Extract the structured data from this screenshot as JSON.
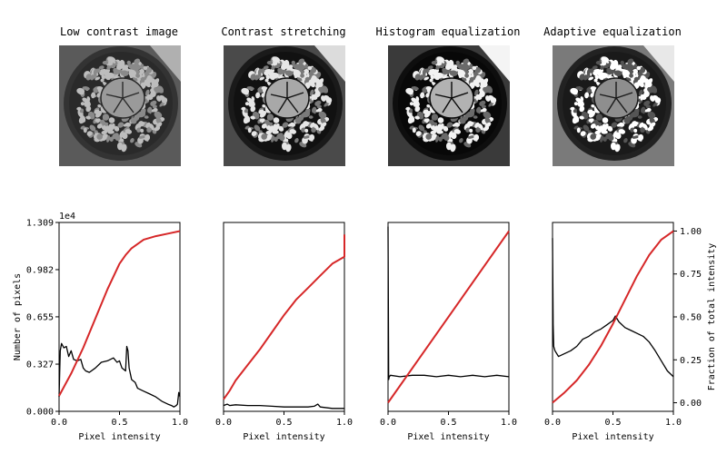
{
  "panels": [
    {
      "title": "Low contrast image",
      "image": {
        "style": "low"
      }
    },
    {
      "title": "Contrast stretching",
      "image": {
        "style": "stretch"
      }
    },
    {
      "title": "Histogram equalization",
      "image": {
        "style": "equal"
      }
    },
    {
      "title": "Adaptive equalization",
      "image": {
        "style": "adaptive"
      }
    }
  ],
  "chart_data": [
    {
      "type": "line",
      "title": "",
      "xlabel": "Pixel intensity",
      "ylabel": "Number of pixels",
      "xlim": [
        0,
        1
      ],
      "ylim": [
        0,
        1.309
      ],
      "y_multiplier": "1e4",
      "xticks": [
        0.0,
        0.5,
        1.0
      ],
      "xtick_labels": [
        "0.0",
        "0.5",
        "1.0"
      ],
      "yticks": [
        0,
        0.327,
        0.655,
        0.982,
        1.309
      ],
      "ytick_labels": [
        "0.000",
        "0.327",
        "0.655",
        "0.982",
        "1.309"
      ],
      "grid": false,
      "series": [
        {
          "role": "histogram",
          "color": "#000000",
          "x": [
            0.0,
            0.01,
            0.02,
            0.04,
            0.06,
            0.08,
            0.1,
            0.12,
            0.15,
            0.18,
            0.2,
            0.22,
            0.25,
            0.3,
            0.35,
            0.4,
            0.45,
            0.48,
            0.5,
            0.52,
            0.55,
            0.56,
            0.57,
            0.58,
            0.6,
            0.63,
            0.65,
            0.7,
            0.75,
            0.8,
            0.85,
            0.9,
            0.93,
            0.95,
            0.97,
            0.98,
            0.99,
            1.0
          ],
          "values": [
            0.1,
            0.42,
            0.47,
            0.44,
            0.45,
            0.38,
            0.42,
            0.36,
            0.35,
            0.36,
            0.3,
            0.28,
            0.27,
            0.3,
            0.34,
            0.35,
            0.37,
            0.34,
            0.35,
            0.3,
            0.28,
            0.45,
            0.42,
            0.3,
            0.22,
            0.2,
            0.16,
            0.14,
            0.12,
            0.1,
            0.07,
            0.05,
            0.04,
            0.03,
            0.04,
            0.05,
            0.13,
            0.1
          ]
        },
        {
          "role": "cdf",
          "color": "#d62728",
          "x": [
            0.0,
            0.1,
            0.2,
            0.3,
            0.4,
            0.5,
            0.55,
            0.6,
            0.7,
            0.8,
            0.9,
            1.0
          ],
          "values": [
            0.04,
            0.17,
            0.32,
            0.49,
            0.66,
            0.81,
            0.86,
            0.9,
            0.95,
            0.97,
            0.985,
            1.0
          ]
        }
      ]
    },
    {
      "type": "line",
      "title": "",
      "xlabel": "Pixel intensity",
      "xlim": [
        0,
        1
      ],
      "xticks": [
        0.0,
        0.5,
        1.0
      ],
      "xtick_labels": [
        "0.0",
        "0.5",
        "1.0"
      ],
      "grid": false,
      "series": [
        {
          "role": "histogram",
          "color": "#000000",
          "x": [
            0.0,
            0.03,
            0.05,
            0.1,
            0.2,
            0.3,
            0.4,
            0.5,
            0.6,
            0.7,
            0.75,
            0.78,
            0.8,
            0.9,
            0.95,
            1.0
          ],
          "values": [
            0.04,
            0.05,
            0.04,
            0.045,
            0.04,
            0.04,
            0.035,
            0.03,
            0.03,
            0.03,
            0.035,
            0.05,
            0.03,
            0.02,
            0.02,
            0.02
          ]
        },
        {
          "role": "cdf",
          "color": "#d62728",
          "x": [
            0.0,
            0.05,
            0.1,
            0.2,
            0.3,
            0.4,
            0.5,
            0.6,
            0.7,
            0.8,
            0.9,
            1.0,
            1.0
          ],
          "values": [
            0.02,
            0.07,
            0.13,
            0.22,
            0.31,
            0.41,
            0.51,
            0.6,
            0.67,
            0.74,
            0.81,
            0.85,
            0.98
          ]
        }
      ]
    },
    {
      "type": "line",
      "title": "",
      "xlabel": "Pixel intensity",
      "xlim": [
        0,
        1
      ],
      "xticks": [
        0.0,
        0.5,
        1.0
      ],
      "xtick_labels": [
        "0.0",
        "0.5",
        "1.0"
      ],
      "grid": false,
      "series": [
        {
          "role": "histogram",
          "color": "#000000",
          "x": [
            0.0,
            0.005,
            0.01,
            0.02,
            0.1,
            0.2,
            0.3,
            0.4,
            0.5,
            0.6,
            0.7,
            0.8,
            0.9,
            1.0
          ],
          "values": [
            1.28,
            0.22,
            0.24,
            0.25,
            0.24,
            0.25,
            0.25,
            0.24,
            0.25,
            0.24,
            0.25,
            0.24,
            0.25,
            0.24
          ]
        },
        {
          "role": "cdf",
          "color": "#d62728",
          "x": [
            0.0,
            1.0
          ],
          "values": [
            0.0,
            1.0
          ]
        }
      ]
    },
    {
      "type": "line",
      "title": "",
      "xlabel": "Pixel intensity",
      "y2label": "Fraction of total intensity",
      "xlim": [
        0,
        1
      ],
      "y2lim": [
        -0.05,
        1.05
      ],
      "xticks": [
        0.0,
        0.5,
        1.0
      ],
      "xtick_labels": [
        "0.0",
        "0.5",
        "1.0"
      ],
      "y2ticks": [
        0.0,
        0.25,
        0.5,
        0.75,
        1.0
      ],
      "y2tick_labels": [
        "0.00",
        "0.25",
        "0.50",
        "0.75",
        "1.00"
      ],
      "grid": false,
      "series": [
        {
          "role": "histogram",
          "color": "#000000",
          "x": [
            0.0,
            0.005,
            0.01,
            0.02,
            0.05,
            0.1,
            0.15,
            0.2,
            0.25,
            0.3,
            0.35,
            0.4,
            0.45,
            0.5,
            0.52,
            0.55,
            0.6,
            0.65,
            0.7,
            0.75,
            0.8,
            0.85,
            0.9,
            0.95,
            1.0
          ],
          "values": [
            1.2,
            0.6,
            0.45,
            0.42,
            0.38,
            0.4,
            0.42,
            0.45,
            0.5,
            0.52,
            0.55,
            0.57,
            0.6,
            0.63,
            0.66,
            0.62,
            0.58,
            0.56,
            0.54,
            0.52,
            0.48,
            0.42,
            0.35,
            0.28,
            0.24
          ]
        },
        {
          "role": "cdf",
          "color": "#d62728",
          "x": [
            0.0,
            0.1,
            0.2,
            0.3,
            0.4,
            0.5,
            0.6,
            0.7,
            0.8,
            0.9,
            1.0
          ],
          "values": [
            0.0,
            0.06,
            0.13,
            0.22,
            0.33,
            0.46,
            0.6,
            0.74,
            0.86,
            0.95,
            1.0
          ]
        }
      ]
    }
  ]
}
